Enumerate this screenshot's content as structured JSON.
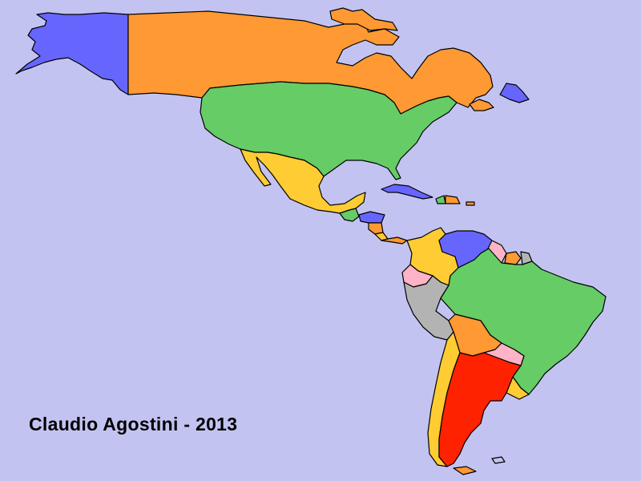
{
  "credit": "Claudio Agostini - 2013",
  "colors": {
    "ocean": "#c3c3f2",
    "blue": "#6666ff",
    "orange": "#ff9933",
    "green": "#66cc66",
    "yellow": "#ffcc33",
    "pink": "#ffb3c6",
    "gray": "#b3b3b3",
    "red": "#ff2200"
  }
}
